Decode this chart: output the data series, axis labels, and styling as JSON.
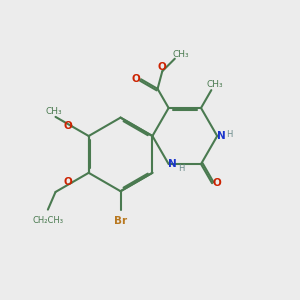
{
  "bg_color": "#ececec",
  "bond_color": "#4a7a50",
  "bond_width": 1.5,
  "n_color": "#1a35cc",
  "o_color": "#cc2200",
  "br_color": "#b87820",
  "h_color": "#6a8a8a",
  "figsize": [
    3.0,
    3.0
  ],
  "dpi": 100,
  "xlim": [
    0,
    10
  ],
  "ylim": [
    0,
    10
  ]
}
